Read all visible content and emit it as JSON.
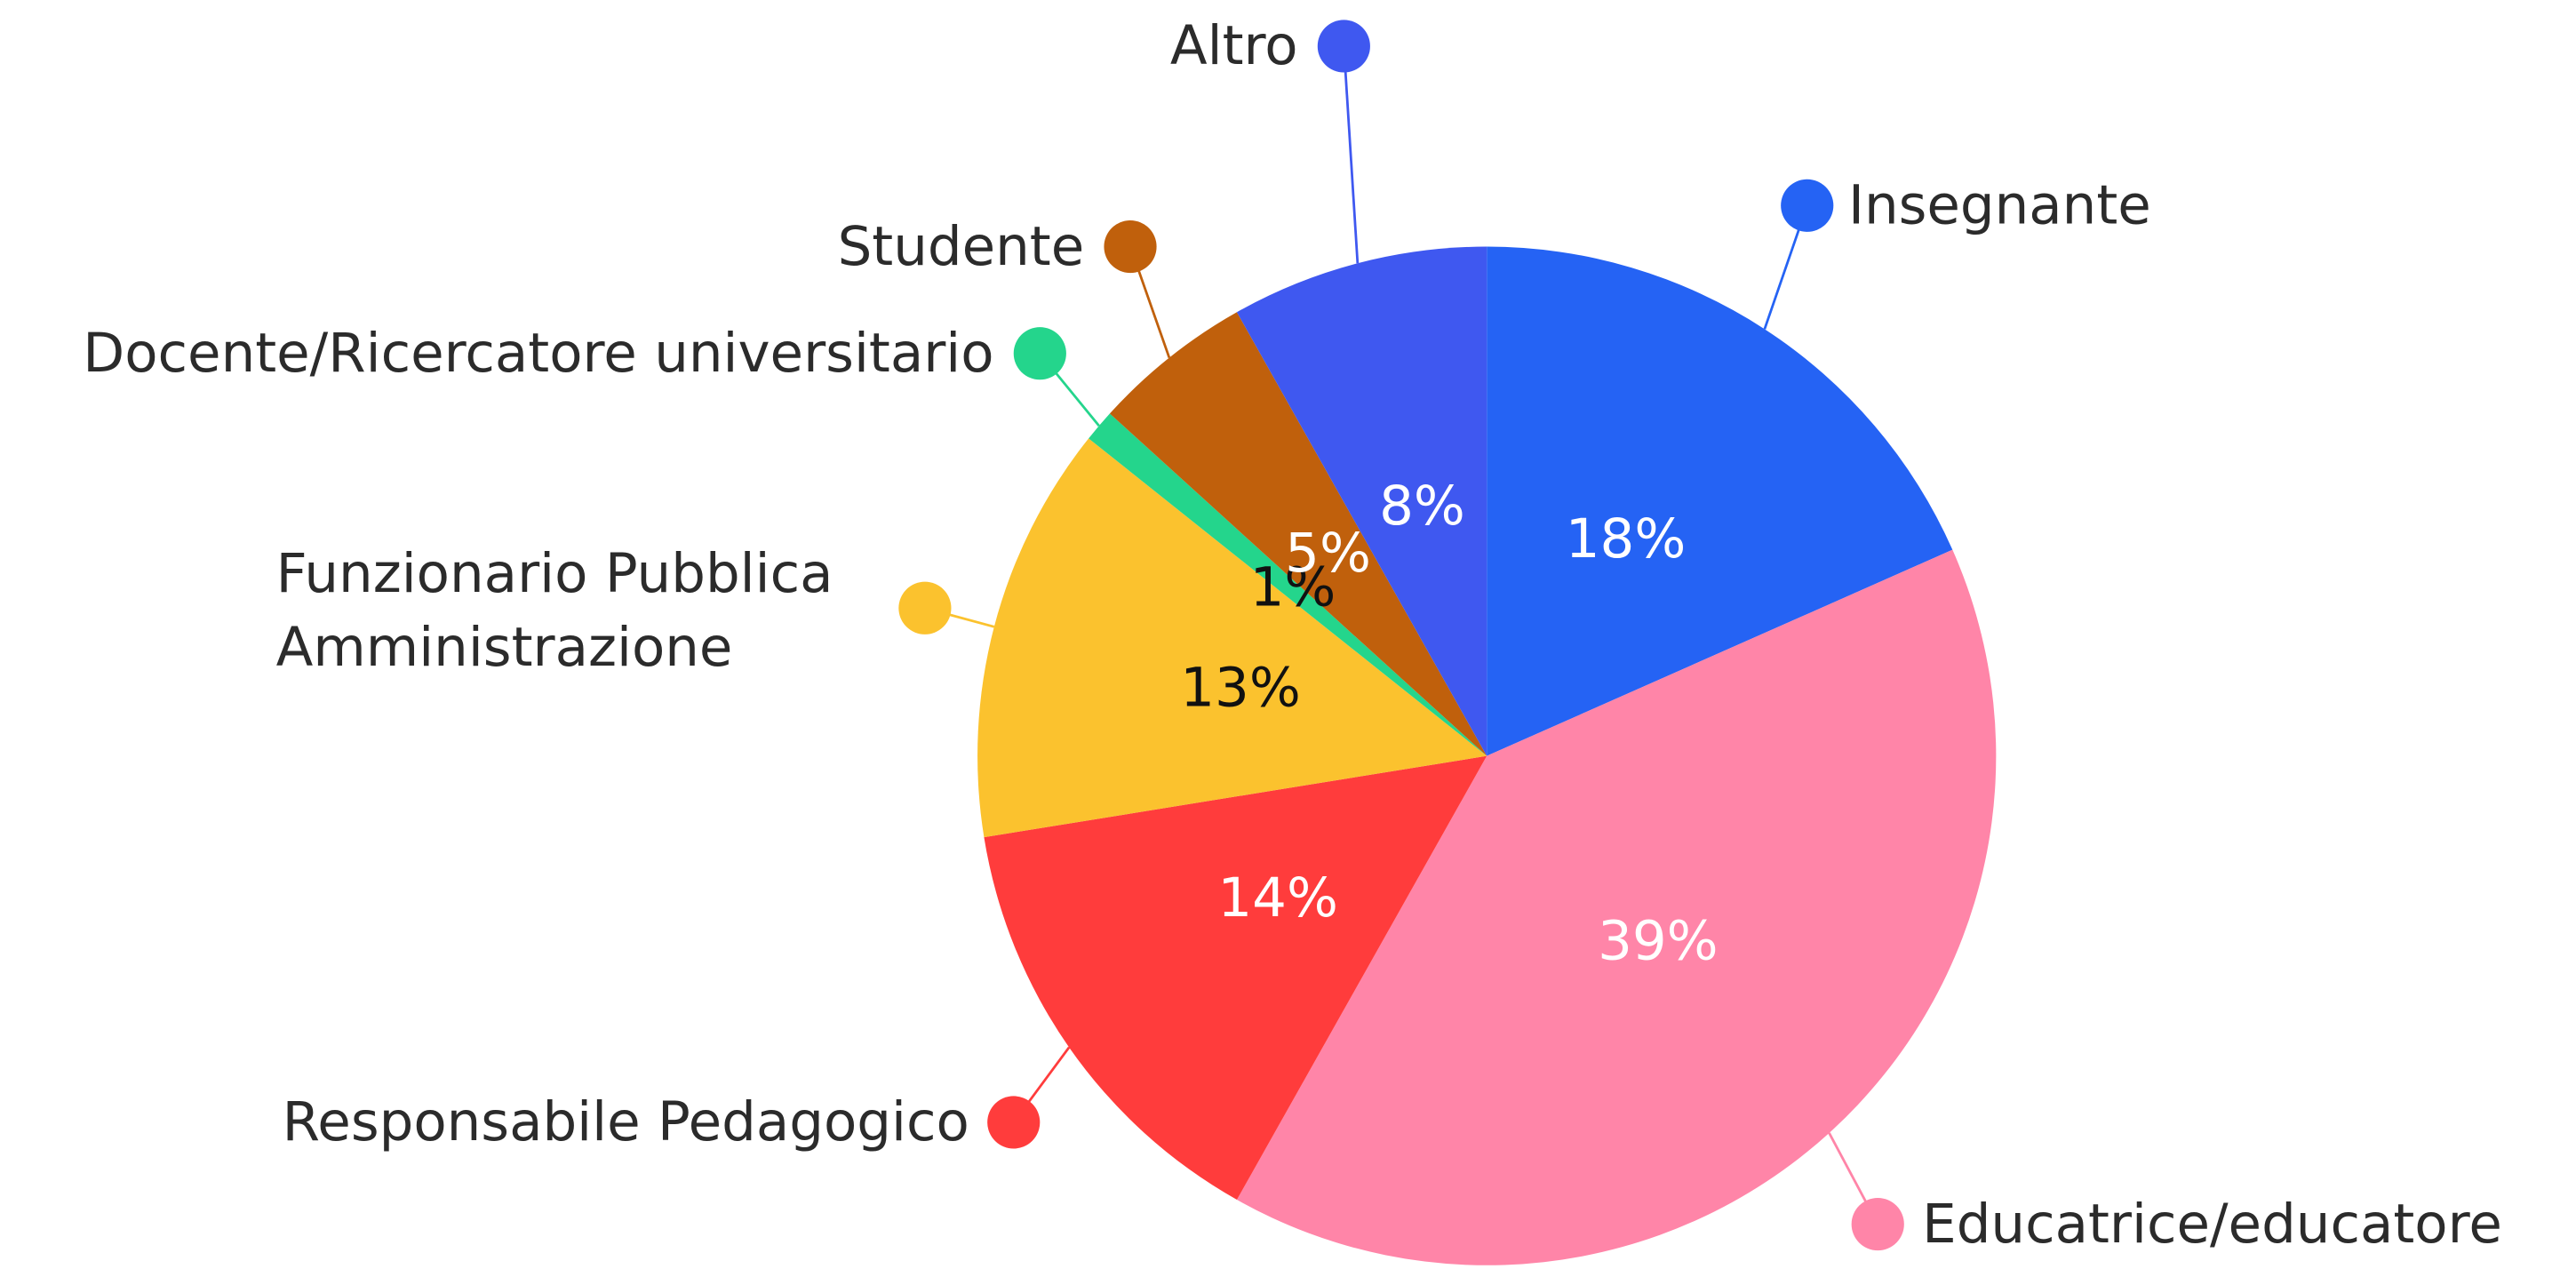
{
  "chart_data": {
    "type": "pie",
    "categories": [
      "Insegnante",
      "Educatrice/educatore",
      "Responsabile Pedagogico",
      "Funzionario Pubblica Amministrazione",
      "Docente/Ricercatore universitario",
      "Studente",
      "Altro"
    ],
    "values": [
      18,
      39,
      14,
      13,
      1,
      5,
      8
    ],
    "value_labels": [
      "18%",
      "39%",
      "14%",
      "13%",
      "1%",
      "5%",
      "8%"
    ],
    "colors": [
      "#2563f4",
      "#ff85a8",
      "#ff3c3c",
      "#fbc22e",
      "#24d58c",
      "#c0600c",
      "#3f58f0"
    ]
  }
}
